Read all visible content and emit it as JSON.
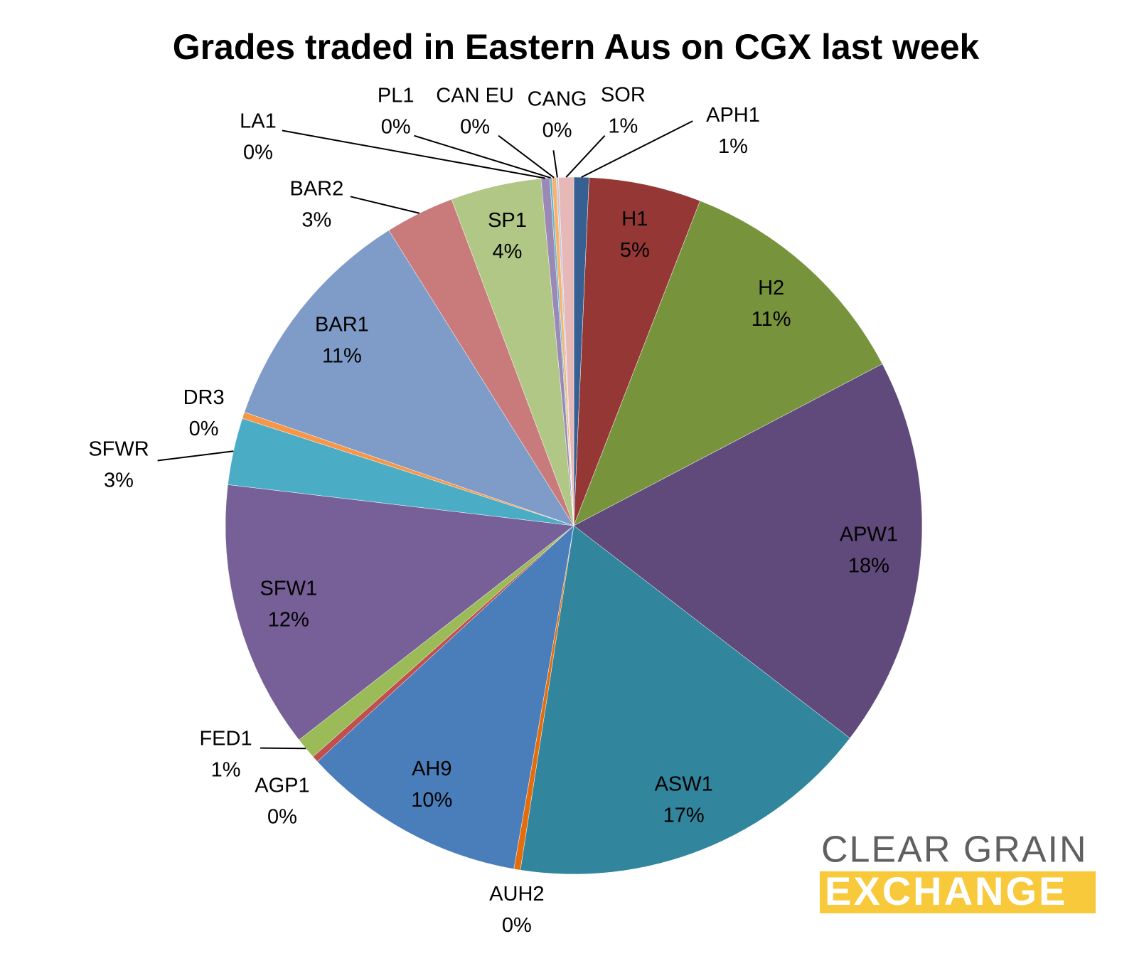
{
  "chart_data": {
    "type": "pie",
    "title": "Grades traded in Eastern Aus on CGX last week",
    "categories": [
      "APH1",
      "H1",
      "H2",
      "APW1",
      "ASW1",
      "AUH2",
      "AH9",
      "AGP1",
      "FED1",
      "SFW1",
      "SFWR",
      "DR3",
      "BAR1",
      "BAR2",
      "SP1",
      "LA1",
      "PL1",
      "CAN EU",
      "CANG",
      "SOR"
    ],
    "values": [
      0.7,
      5.2,
      11.4,
      18.1,
      17.0,
      0.3,
      10.4,
      0.3,
      1.0,
      12.4,
      3.1,
      0.3,
      10.8,
      3.2,
      4.2,
      0.4,
      0.1,
      0.2,
      0.1,
      0.7
    ],
    "value_labels": [
      "1%",
      "5%",
      "11%",
      "18%",
      "17%",
      "0%",
      "10%",
      "0%",
      "1%",
      "12%",
      "3%",
      "0%",
      "11%",
      "3%",
      "4%",
      "0%",
      "0%",
      "0%",
      "0%",
      "1%"
    ],
    "colors": [
      "#376092",
      "#953735",
      "#77933c",
      "#604a7b",
      "#31859c",
      "#e46c0a",
      "#4a7ebb",
      "#c0504d",
      "#9bbb59",
      "#775f97",
      "#4bacc6",
      "#f79646",
      "#7f9cc8",
      "#c97b7b",
      "#b0c785",
      "#9a89b5",
      "#5fb8d0",
      "#fab26b",
      "#c3c9dc",
      "#e6b9b8"
    ]
  },
  "logo": {
    "line1": "CLEAR GRAIN",
    "line2": "EXCHANGE"
  }
}
